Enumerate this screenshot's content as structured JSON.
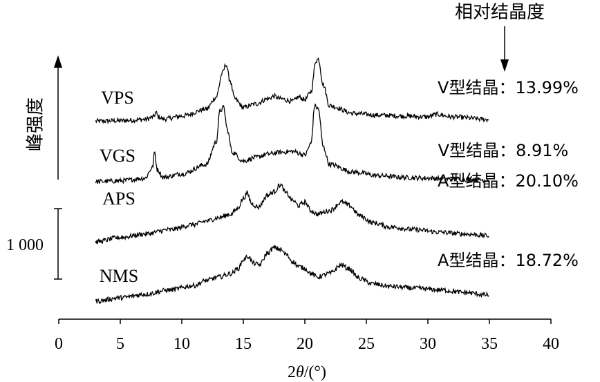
{
  "chart_data": {
    "type": "line",
    "xlabel": "2θ/(°)",
    "xlabel_prefix": "2",
    "xlabel_symbol": "θ",
    "xlabel_unit": "/(°)",
    "ylabel": "峰强度",
    "xlim": [
      0,
      40
    ],
    "xticks": [
      0,
      5,
      10,
      15,
      20,
      25,
      30,
      35,
      40
    ],
    "x_range_data": [
      3,
      35
    ],
    "scale_bar_label": "1 000",
    "scale_bar_value": 1000,
    "header_label": "相对结晶度",
    "grid": false,
    "series": [
      {
        "name": "VPS",
        "crystal_label": "V型结晶：13.99%",
        "crystal_type": "V",
        "relative_crystallinity": 13.99,
        "x": [
          3,
          5,
          7,
          7.7,
          7.9,
          8.1,
          8.5,
          10,
          12,
          12.8,
          13.3,
          13.6,
          13.9,
          14.3,
          15,
          16,
          17,
          17.5,
          18,
          19,
          19.5,
          20,
          20.5,
          20.9,
          21.1,
          21.5,
          22,
          24,
          26,
          28,
          30,
          30.7,
          32,
          35
        ],
        "y_rel": [
          0.1,
          0.13,
          0.2,
          0.35,
          0.6,
          0.35,
          0.22,
          0.4,
          0.8,
          1.5,
          2.9,
          3.4,
          2.5,
          1.4,
          0.9,
          1.1,
          1.4,
          1.55,
          1.4,
          1.25,
          1.5,
          1.35,
          1.8,
          3.6,
          3.7,
          2.2,
          1.0,
          0.55,
          0.45,
          0.4,
          0.35,
          0.5,
          0.35,
          0.2
        ]
      },
      {
        "name": "VGS",
        "crystal_label": "V型结晶：8.91%",
        "crystal_type": "V",
        "relative_crystallinity": 8.91,
        "x": [
          3,
          5,
          7,
          7.6,
          7.8,
          8.0,
          8.5,
          10,
          12,
          12.8,
          13.1,
          13.4,
          13.7,
          14.1,
          15,
          16,
          17,
          18,
          19,
          20,
          20.5,
          20.8,
          21.1,
          21.5,
          22,
          24,
          26,
          28,
          30,
          32,
          35
        ],
        "y_rel": [
          0.0,
          0.05,
          0.2,
          0.8,
          1.7,
          0.7,
          0.25,
          0.45,
          1.0,
          2.3,
          4.1,
          4.3,
          3.0,
          1.7,
          1.2,
          1.4,
          1.6,
          1.7,
          1.75,
          1.55,
          2.2,
          4.4,
          4.2,
          2.0,
          1.0,
          0.55,
          0.35,
          0.25,
          0.2,
          0.15,
          0.1
        ]
      },
      {
        "name": "APS",
        "crystal_label": "A型结晶：20.10%",
        "crystal_type": "A",
        "relative_crystallinity": 20.1,
        "x": [
          3,
          5,
          7,
          9,
          11,
          12,
          13,
          14,
          14.5,
          15,
          15.3,
          15.7,
          16.2,
          17,
          17.5,
          18,
          18.5,
          19,
          19.5,
          20,
          20.5,
          21,
          22,
          23,
          23.6,
          24.5,
          25.5,
          27,
          29,
          31,
          33,
          35
        ],
        "y_rel": [
          0.0,
          0.25,
          0.45,
          0.7,
          1.0,
          1.2,
          1.4,
          1.6,
          1.9,
          2.5,
          2.8,
          2.2,
          2.0,
          2.7,
          2.9,
          3.3,
          2.8,
          2.4,
          2.1,
          2.3,
          1.8,
          1.6,
          1.8,
          2.3,
          2.1,
          1.5,
          1.1,
          0.85,
          0.7,
          0.55,
          0.45,
          0.35
        ]
      },
      {
        "name": "NMS",
        "crystal_label": "A型结晶：18.72%",
        "crystal_type": "A",
        "relative_crystallinity": 18.72,
        "x": [
          3,
          5,
          7,
          9,
          11,
          12,
          13,
          14,
          14.6,
          15,
          15.4,
          15.8,
          16.3,
          17,
          17.5,
          18,
          18.5,
          19,
          19.5,
          20,
          20.5,
          21,
          22,
          23,
          23.5,
          24.5,
          25.5,
          27,
          29,
          31,
          33,
          35
        ],
        "y_rel": [
          0.0,
          0.2,
          0.4,
          0.65,
          0.9,
          1.2,
          1.4,
          1.6,
          1.9,
          2.4,
          2.6,
          2.2,
          2.1,
          2.8,
          3.1,
          3.0,
          2.7,
          2.3,
          2.0,
          1.9,
          1.6,
          1.4,
          1.6,
          2.1,
          1.9,
          1.3,
          1.0,
          0.85,
          0.75,
          0.65,
          0.5,
          0.35
        ]
      }
    ]
  }
}
